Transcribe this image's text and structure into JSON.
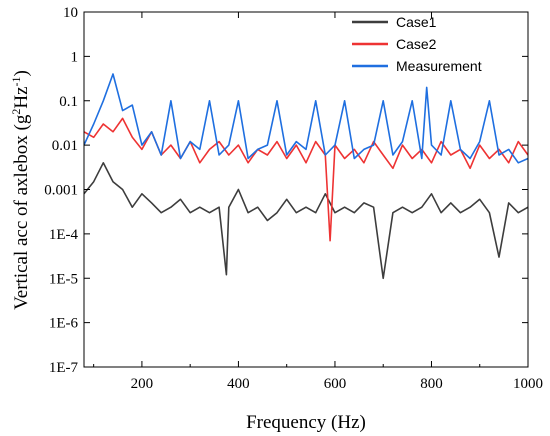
{
  "chart_data": {
    "type": "line",
    "title": "",
    "xlabel": "Frequency (Hz)",
    "ylabel": {
      "main": "Vertical acc of axlebox (g",
      "sup1": "2",
      "mid": "Hz",
      "sup2": "-1",
      "tail": ")"
    },
    "xlim": [
      80,
      1000
    ],
    "ylim": [
      1e-07,
      10
    ],
    "yscale": "log",
    "grid": false,
    "legend_position": "top-right",
    "x_ticks": [
      200,
      400,
      600,
      800,
      1000
    ],
    "x_tick_labels": [
      "200",
      "400",
      "600",
      "800",
      "1000"
    ],
    "y_ticks": [
      1e-07,
      1e-06,
      1e-05,
      0.0001,
      0.001,
      0.01,
      0.1,
      1,
      10
    ],
    "y_tick_labels": [
      "1E-7",
      "1E-6",
      "1E-5",
      "1E-4",
      "0.001",
      "0.01",
      "0.1",
      "1",
      "10"
    ],
    "series": [
      {
        "name": "Case1",
        "color": "#3d3d3d",
        "x": [
          80,
          100,
          120,
          140,
          160,
          180,
          200,
          220,
          240,
          260,
          280,
          300,
          320,
          340,
          360,
          375,
          380,
          400,
          420,
          440,
          460,
          480,
          500,
          520,
          540,
          560,
          580,
          600,
          620,
          640,
          660,
          680,
          700,
          720,
          740,
          760,
          780,
          800,
          820,
          840,
          860,
          880,
          900,
          920,
          940,
          960,
          980,
          1000
        ],
        "y": [
          0.0008,
          0.0015,
          0.004,
          0.0015,
          0.001,
          0.0004,
          0.0008,
          0.0005,
          0.0003,
          0.0004,
          0.0006,
          0.0003,
          0.0004,
          0.0003,
          0.0004,
          1.2e-05,
          0.0004,
          0.001,
          0.0003,
          0.0004,
          0.0002,
          0.0003,
          0.0006,
          0.0003,
          0.0004,
          0.0003,
          0.0008,
          0.0003,
          0.0004,
          0.0003,
          0.0005,
          0.0004,
          1e-05,
          0.0003,
          0.0004,
          0.0003,
          0.0004,
          0.0008,
          0.0003,
          0.0005,
          0.0003,
          0.0004,
          0.0006,
          0.0003,
          3e-05,
          0.0005,
          0.0003,
          0.0004
        ]
      },
      {
        "name": "Case2",
        "color": "#ee3333",
        "x": [
          80,
          100,
          120,
          140,
          160,
          180,
          200,
          220,
          240,
          260,
          280,
          300,
          320,
          340,
          360,
          380,
          400,
          420,
          440,
          460,
          480,
          500,
          520,
          540,
          560,
          580,
          590,
          600,
          620,
          640,
          660,
          680,
          700,
          720,
          740,
          760,
          780,
          800,
          820,
          840,
          860,
          880,
          900,
          920,
          940,
          960,
          980,
          1000
        ],
        "y": [
          0.02,
          0.015,
          0.03,
          0.02,
          0.04,
          0.015,
          0.008,
          0.02,
          0.006,
          0.01,
          0.005,
          0.012,
          0.004,
          0.008,
          0.012,
          0.006,
          0.01,
          0.004,
          0.008,
          0.006,
          0.012,
          0.005,
          0.01,
          0.004,
          0.012,
          0.006,
          7e-05,
          0.01,
          0.005,
          0.008,
          0.004,
          0.012,
          0.006,
          0.003,
          0.01,
          0.005,
          0.008,
          0.004,
          0.012,
          0.006,
          0.008,
          0.003,
          0.01,
          0.005,
          0.008,
          0.004,
          0.012,
          0.006
        ]
      },
      {
        "name": "Measurement",
        "color": "#1f6fe0",
        "x": [
          80,
          100,
          120,
          140,
          160,
          180,
          200,
          220,
          240,
          260,
          280,
          300,
          320,
          340,
          360,
          380,
          400,
          420,
          440,
          460,
          480,
          500,
          520,
          540,
          560,
          580,
          600,
          620,
          640,
          660,
          680,
          700,
          720,
          740,
          760,
          780,
          790,
          800,
          820,
          840,
          860,
          880,
          900,
          920,
          940,
          960,
          980,
          1000
        ],
        "y": [
          0.01,
          0.03,
          0.1,
          0.4,
          0.06,
          0.08,
          0.01,
          0.02,
          0.006,
          0.1,
          0.005,
          0.012,
          0.008,
          0.1,
          0.006,
          0.01,
          0.1,
          0.005,
          0.008,
          0.01,
          0.1,
          0.006,
          0.012,
          0.008,
          0.1,
          0.006,
          0.01,
          0.1,
          0.005,
          0.008,
          0.01,
          0.1,
          0.006,
          0.012,
          0.1,
          0.005,
          0.2,
          0.01,
          0.006,
          0.1,
          0.008,
          0.005,
          0.012,
          0.1,
          0.006,
          0.008,
          0.004,
          0.005
        ]
      }
    ]
  }
}
